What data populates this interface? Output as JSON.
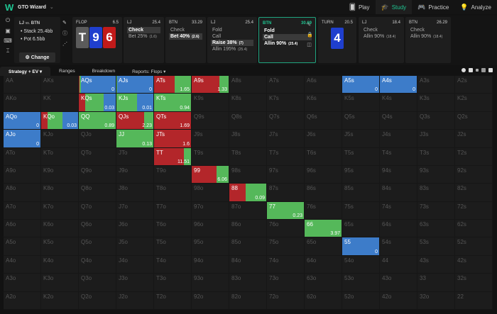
{
  "app": {
    "name": "GTO Wizard",
    "logo": "W"
  },
  "nav": [
    {
      "label": "Play",
      "icon": "cards-icon",
      "glyph": "🂠",
      "active": false
    },
    {
      "label": "Study",
      "icon": "graduation-cap-icon",
      "glyph": "🎓",
      "active": true
    },
    {
      "label": "Practice",
      "icon": "gamepad-icon",
      "glyph": "🎮",
      "active": false
    },
    {
      "label": "Analyze",
      "icon": "lightbulb-icon",
      "glyph": "💡",
      "active": false
    }
  ],
  "summary": {
    "matchup_a": "LJ",
    "vs": "vs.",
    "matchup_b": "BTN",
    "stack": "• Stack 25.4bb",
    "pot": "• Pot 6.5bb",
    "change_label": "⚙ Change"
  },
  "flop": {
    "label": "FLOP",
    "pot": "6.5",
    "cards": [
      {
        "rank": "T",
        "color": "#5b5b5b"
      },
      {
        "rank": "9",
        "color": "#1f3fce"
      },
      {
        "rank": "6",
        "color": "#c11a1a"
      }
    ]
  },
  "nodes": [
    {
      "player": "LJ",
      "value": "25.4",
      "actions": [
        {
          "label": "Check",
          "style": "sel"
        },
        {
          "label": "Bet 25%",
          "size": "(1.6)",
          "style": ""
        }
      ]
    },
    {
      "player": "BTN",
      "value": "33.29",
      "actions": [
        {
          "label": "Check",
          "style": ""
        },
        {
          "label": "Bet 40%",
          "size": "(2.6)",
          "style": "sel"
        }
      ]
    },
    {
      "player": "LJ",
      "value": "25.4",
      "actions": [
        {
          "label": "Fold",
          "style": ""
        },
        {
          "label": "Call",
          "style": ""
        },
        {
          "label": "Raise 38%",
          "size": "(7)",
          "style": "sel"
        },
        {
          "label": "Allin 195%",
          "size": "(25.4)",
          "style": ""
        }
      ]
    },
    {
      "player": "BTN",
      "value": "30.69",
      "actions": [
        {
          "label": "Fold",
          "style": "bold"
        },
        {
          "label": "Call",
          "style": "sel"
        },
        {
          "label": "Allin 90%",
          "size": "(25.4)",
          "style": "bold"
        }
      ]
    }
  ],
  "turn": {
    "label": "TURN",
    "pot": "20.5",
    "card": {
      "rank": "4",
      "color": "#1f3fce"
    }
  },
  "turn_nodes": [
    {
      "player": "LJ",
      "value": "18.4",
      "actions": [
        {
          "label": "Check",
          "style": ""
        },
        {
          "label": "Allin 90%",
          "size": "(18.4)",
          "style": ""
        }
      ]
    },
    {
      "player": "BTN",
      "value": "26.29",
      "actions": [
        {
          "label": "Check",
          "style": ""
        },
        {
          "label": "Allin 90%",
          "size": "(18.4)",
          "style": ""
        }
      ]
    }
  ],
  "tabs": [
    {
      "label": "Strategy + EV ▾",
      "active": true
    },
    {
      "label": "Ranges",
      "active": false
    },
    {
      "label": "Breakdown",
      "active": false
    },
    {
      "label": "Reports: Flops ▾",
      "active": false
    }
  ],
  "colors": {
    "fold": "#3d7cc9",
    "call": "#55b85a",
    "raise": "#b3262a",
    "empty": "#1c1c1c",
    "accent": "#1fc592"
  },
  "ranks": [
    "A",
    "K",
    "Q",
    "J",
    "T",
    "9",
    "8",
    "7",
    "6",
    "5",
    "4",
    "3",
    "2"
  ],
  "hands": {
    "AQs": {
      "ev": "0",
      "mix": [
        [
          "raise",
          2
        ],
        [
          "call",
          3
        ],
        [
          "fold",
          95
        ]
      ]
    },
    "AJs": {
      "ev": "0",
      "mix": [
        [
          "call",
          2
        ],
        [
          "fold",
          98
        ]
      ]
    },
    "ATs": {
      "ev": "1.65",
      "mix": [
        [
          "raise",
          55
        ],
        [
          "call",
          45
        ]
      ]
    },
    "A9s": {
      "ev": "1.33",
      "mix": [
        [
          "raise",
          75
        ],
        [
          "call",
          25
        ]
      ]
    },
    "A5s": {
      "ev": "0",
      "mix": [
        [
          "fold",
          100
        ]
      ]
    },
    "A4s": {
      "ev": "0",
      "mix": [
        [
          "fold",
          100
        ]
      ]
    },
    "KQs": {
      "ev": "0.03",
      "mix": [
        [
          "raise",
          17
        ],
        [
          "call",
          50
        ],
        [
          "fold",
          33
        ]
      ]
    },
    "KJs": {
      "ev": "0.01",
      "mix": [
        [
          "call",
          55
        ],
        [
          "fold",
          45
        ]
      ]
    },
    "KTs": {
      "ev": "0.94",
      "mix": [
        [
          "call",
          100
        ]
      ]
    },
    "AQo": {
      "ev": "0",
      "mix": [
        [
          "fold",
          100
        ]
      ]
    },
    "KQo": {
      "ev": "0.03",
      "mix": [
        [
          "raise",
          18
        ],
        [
          "call",
          40
        ],
        [
          "fold",
          42
        ]
      ]
    },
    "QQ": {
      "ev": "0.89",
      "mix": [
        [
          "call",
          100
        ]
      ]
    },
    "QJs": {
      "ev": "2.23",
      "mix": [
        [
          "raise",
          75
        ],
        [
          "call",
          25
        ]
      ]
    },
    "QTs": {
      "ev": "1.69",
      "mix": [
        [
          "raise",
          100
        ]
      ]
    },
    "AJo": {
      "ev": "0",
      "mix": [
        [
          "fold",
          100
        ]
      ]
    },
    "JJ": {
      "ev": "0.13",
      "mix": [
        [
          "call",
          100
        ]
      ]
    },
    "JTs": {
      "ev": "1.6",
      "mix": [
        [
          "raise",
          100
        ]
      ]
    },
    "TT": {
      "ev": "11.51",
      "mix": [
        [
          "raise",
          80
        ],
        [
          "call",
          20
        ]
      ]
    },
    "99": {
      "ev": "6.06",
      "mix": [
        [
          "raise",
          68
        ],
        [
          "call",
          32
        ]
      ]
    },
    "88": {
      "ev": "0.09",
      "mix": [
        [
          "raise",
          45
        ],
        [
          "call",
          55
        ]
      ]
    },
    "77": {
      "ev": "0.23",
      "mix": [
        [
          "call",
          100
        ]
      ]
    },
    "66": {
      "ev": "3.97",
      "mix": [
        [
          "call",
          100
        ]
      ]
    },
    "55": {
      "ev": "0",
      "mix": [
        [
          "fold",
          100
        ]
      ]
    }
  }
}
